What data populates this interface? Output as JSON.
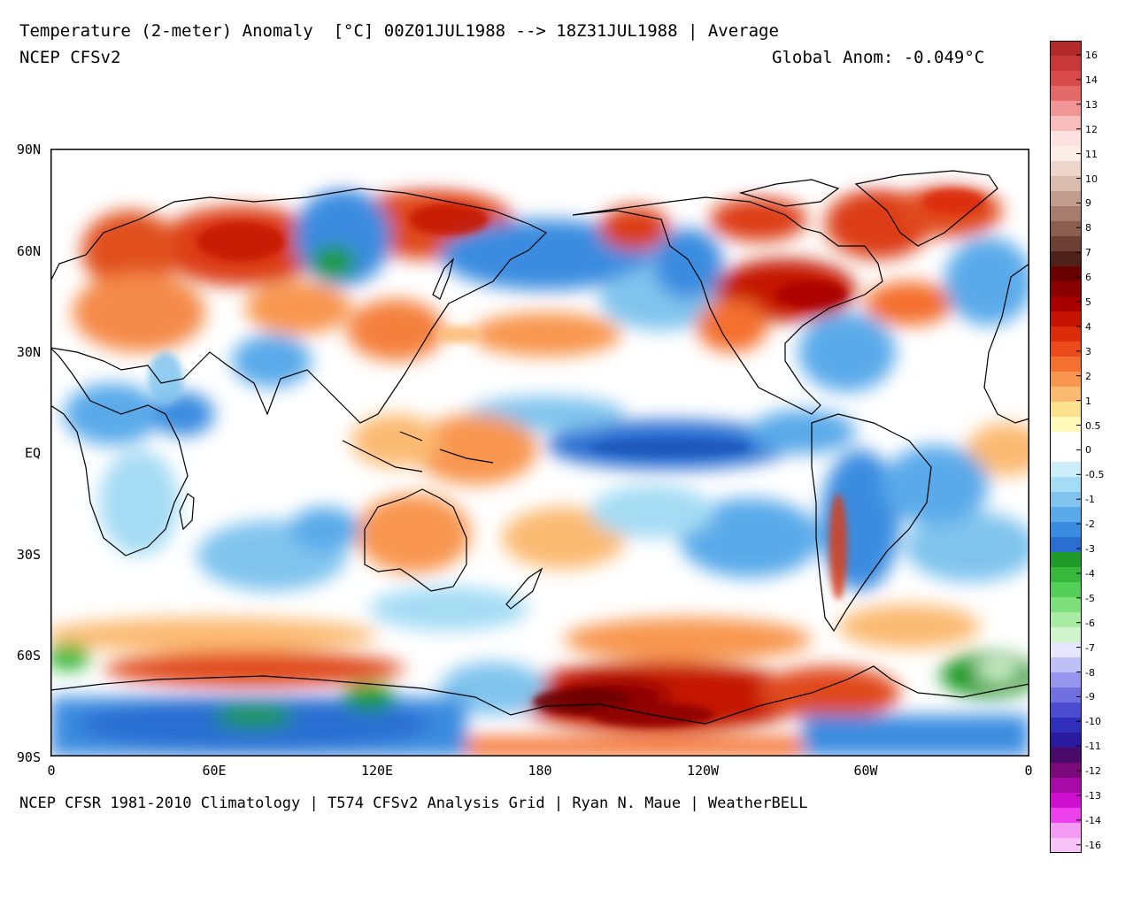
{
  "title_line1": "Temperature (2-meter) Anomaly  [°C] 00Z01JUL1988 --> 18Z31JUL1988 | Average",
  "title_line2": "NCEP CFSv2",
  "global_anom": "Global Anom: -0.049°C",
  "footer": "NCEP CFSR 1981-2010 Climatology | T574 CFSv2 Analysis Grid | Ryan N. Maue | WeatherBELL",
  "lat_labels": [
    "90N",
    "60N",
    "30N",
    "EQ",
    "30S",
    "60S",
    "90S"
  ],
  "lon_labels": [
    "0",
    "60E",
    "120E",
    "180",
    "120W",
    "60W",
    "0"
  ],
  "colorbar": {
    "labels": [
      "16",
      "14",
      "13",
      "12",
      "11",
      "10",
      "9",
      "8",
      "7",
      "6",
      "5",
      "4",
      "3",
      "2",
      "1",
      "0.5",
      "0",
      "-0.5",
      "-1",
      "-2",
      "-3",
      "-4",
      "-5",
      "-6",
      "-7",
      "-8",
      "-9",
      "-10",
      "-11",
      "-12",
      "-13",
      "-14",
      "-16"
    ],
    "colors": [
      "#b22a2a",
      "#c83838",
      "#d84a4a",
      "#e46a6a",
      "#f19696",
      "#f7bcbc",
      "#fde0e0",
      "#fbeee6",
      "#ecd6cc",
      "#d9bcae",
      "#c29c8c",
      "#a67c6c",
      "#8c5e50",
      "#6e4034",
      "#4e2218",
      "#6a0000",
      "#8a0000",
      "#a80000",
      "#c41400",
      "#dc2c0a",
      "#ec4a1a",
      "#f4702e",
      "#f89650",
      "#fbba72",
      "#fde28e",
      "#fffaba",
      "#ffffff",
      "#ffffff",
      "#ceeefa",
      "#a4dcf4",
      "#80c4ee",
      "#5aaaea",
      "#3a8ce0",
      "#2a6ed2",
      "#1e9a28",
      "#36b83a",
      "#54d058",
      "#7ee07c",
      "#a8eca4",
      "#d0f4cc",
      "#e6e6ff",
      "#c0c0f8",
      "#9696ee",
      "#7070e0",
      "#4c4cd0",
      "#3030bc",
      "#2a1aa0",
      "#4a0a6a",
      "#7a0a7a",
      "#a80aa8",
      "#d010d0",
      "#ec40ec",
      "#f49af4",
      "#f8c4f8"
    ]
  },
  "legend_colors": {
    "warm_strong": "#a80000",
    "warm": "#f4702e",
    "warm_light": "#fbba72",
    "neutral": "#ffffff",
    "cool_light": "#a4dcf4",
    "cool": "#3a8ce0",
    "cool_strong": "#1e9a28",
    "land_outline": "#000000"
  }
}
